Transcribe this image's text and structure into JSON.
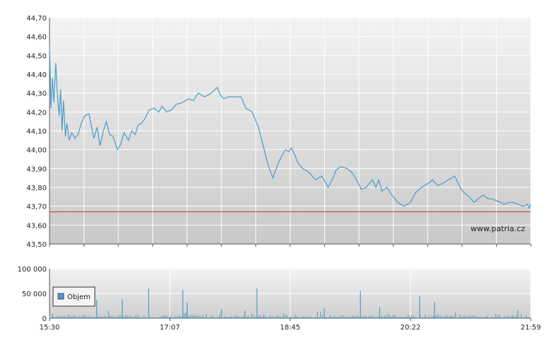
{
  "chart_data": [
    {
      "type": "line",
      "title": "",
      "ylim": [
        43.5,
        44.7
      ],
      "y_ticks": [
        "44,70",
        "44,60",
        "44,50",
        "44,40",
        "44,30",
        "44,20",
        "44,10",
        "44,00",
        "43,90",
        "43,80",
        "43,70",
        "43,60",
        "43,50"
      ],
      "reference_line": {
        "value": 43.67,
        "color": "#cc3333"
      },
      "watermark": "www.patria.cz",
      "grid": true,
      "colors": {
        "line": "#4a9cc8",
        "grid": "#ffffff",
        "bg_top": "#f2f2f2",
        "bg_bottom": "#cccccc"
      },
      "series": [
        {
          "x": [
            0.0,
            0.3,
            0.6,
            0.9,
            1.3,
            1.6,
            2.0,
            2.3,
            2.6,
            2.9,
            3.3,
            3.6,
            4.1,
            4.6,
            5.3,
            5.9,
            6.6,
            7.3,
            8.2,
            9.2,
            9.9,
            10.5,
            11.2,
            11.8,
            12.5,
            13.2,
            14.1,
            14.8,
            15.5,
            16.4,
            17.1,
            17.8,
            18.4,
            19.1,
            19.7,
            20.7,
            21.7,
            22.7,
            23.4,
            24.3,
            25.3,
            26.3,
            27.6,
            28.9,
            29.9,
            30.9,
            32.2,
            33.6,
            34.9,
            35.5,
            36.2,
            37.2,
            38.5,
            39.8,
            40.8,
            42.1,
            43.4,
            44.4,
            45.4,
            46.4,
            47.7,
            49.0,
            49.7,
            50.3,
            51.0,
            51.6,
            52.6,
            53.9,
            55.3,
            56.6,
            57.9,
            58.9,
            59.5,
            60.5,
            61.8,
            62.8,
            63.8,
            64.8,
            65.8,
            66.4,
            67.1,
            67.8,
            68.4,
            69.1,
            70.1,
            71.1,
            72.4,
            73.7,
            75.0,
            76.0,
            77.3,
            78.6,
            79.6,
            80.6,
            81.6,
            82.9,
            84.2,
            85.5,
            86.2,
            87.2,
            88.2,
            89.1,
            90.1,
            91.1,
            91.8,
            92.8,
            93.8,
            94.4,
            95.4,
            96.4,
            97.4,
            98.4,
            99.3,
            99.7,
            100.0
          ],
          "y": [
            44.55,
            44.22,
            44.38,
            44.25,
            44.46,
            44.3,
            44.18,
            44.32,
            44.1,
            44.26,
            44.07,
            44.14,
            44.05,
            44.09,
            44.06,
            44.08,
            44.14,
            44.18,
            44.19,
            44.06,
            44.12,
            44.02,
            44.1,
            44.15,
            44.08,
            44.07,
            44.0,
            44.03,
            44.09,
            44.05,
            44.1,
            44.08,
            44.13,
            44.14,
            44.16,
            44.21,
            44.22,
            44.2,
            44.23,
            44.2,
            44.21,
            44.24,
            44.25,
            44.27,
            44.26,
            44.3,
            44.28,
            44.3,
            44.33,
            44.29,
            44.27,
            44.28,
            44.28,
            44.28,
            44.22,
            44.2,
            44.12,
            44.02,
            43.92,
            43.85,
            43.94,
            44.0,
            43.99,
            44.01,
            43.97,
            43.93,
            43.9,
            43.88,
            43.84,
            43.86,
            43.8,
            43.85,
            43.89,
            43.91,
            43.9,
            43.88,
            43.84,
            43.79,
            43.8,
            43.82,
            43.84,
            43.8,
            43.84,
            43.78,
            43.8,
            43.76,
            43.72,
            43.7,
            43.72,
            43.77,
            43.8,
            43.82,
            43.84,
            43.81,
            43.82,
            43.84,
            43.86,
            43.79,
            43.77,
            43.75,
            43.72,
            43.74,
            43.76,
            43.74,
            43.74,
            43.73,
            43.72,
            43.71,
            43.72,
            43.72,
            43.71,
            43.7,
            43.71,
            43.69,
            43.71
          ]
        }
      ]
    },
    {
      "type": "bar",
      "title": "",
      "ylim": [
        0,
        100000
      ],
      "y_ticks": [
        "100 000",
        "50 000",
        "0"
      ],
      "x_ticks": [
        "15:30",
        "17:07",
        "18:45",
        "20:22",
        "21:59"
      ],
      "legend": {
        "label": "Objem",
        "position": "top-left"
      },
      "colors": {
        "bar": "#4a9cc8",
        "legend_box": "#4a9cc8"
      },
      "spikes": [
        {
          "x": 20.6,
          "value": 60000
        },
        {
          "x": 27.7,
          "value": 57000
        },
        {
          "x": 43.1,
          "value": 60000
        },
        {
          "x": 64.6,
          "value": 55000
        },
        {
          "x": 76.9,
          "value": 45000
        },
        {
          "x": 15.1,
          "value": 38000
        },
        {
          "x": 9.8,
          "value": 37000
        },
        {
          "x": 80.0,
          "value": 33000
        },
        {
          "x": 28.6,
          "value": 32000
        },
        {
          "x": 68.6,
          "value": 22000
        },
        {
          "x": 57.1,
          "value": 20000
        },
        {
          "x": 35.7,
          "value": 18000
        },
        {
          "x": 40.6,
          "value": 15000
        },
        {
          "x": 97.3,
          "value": 16000
        },
        {
          "x": 0.6,
          "value": 9000
        }
      ]
    }
  ]
}
